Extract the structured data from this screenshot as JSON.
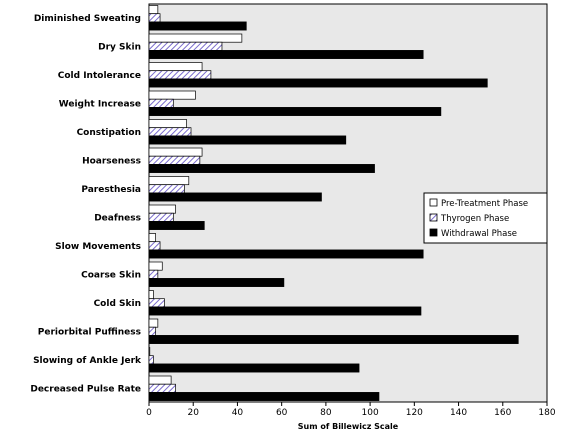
{
  "chart_data": {
    "type": "bar",
    "orientation": "horizontal",
    "title": "",
    "xlabel": "Sum of Billewicz Scale",
    "ylabel": "",
    "xlim": [
      0,
      180
    ],
    "xticks": [
      0,
      20,
      40,
      60,
      80,
      100,
      120,
      140,
      160,
      180
    ],
    "grid": false,
    "legend_position": "right",
    "categories": [
      "Diminished Sweating",
      "Dry Skin",
      "Cold Intolerance",
      "Weight Increase",
      "Constipation",
      "Hoarseness",
      "Paresthesia",
      "Deafness",
      "Slow Movements",
      "Coarse Skin",
      "Cold Skin",
      "Periorbital Puffiness",
      "Slowing of Ankle Jerk",
      "Decreased Pulse Rate"
    ],
    "series": [
      {
        "name": "Pre-Treatment Phase",
        "pattern": "white",
        "values": [
          4,
          42,
          24,
          21,
          17,
          24,
          18,
          12,
          3,
          6,
          2,
          4,
          0,
          10
        ]
      },
      {
        "name": "Thyrogen Phase",
        "pattern": "hatched-purple",
        "values": [
          5,
          33,
          28,
          11,
          19,
          23,
          16,
          11,
          5,
          4,
          7,
          3,
          2,
          12
        ]
      },
      {
        "name": "Withdrawal Phase",
        "pattern": "black",
        "values": [
          44,
          124,
          153,
          132,
          89,
          102,
          78,
          25,
          124,
          61,
          123,
          167,
          95,
          104
        ]
      }
    ],
    "colors": {
      "plot_background": "#e8e8e8",
      "hatch": "#7a6ccd",
      "bar_border": "#000000",
      "solid": "#000000"
    }
  }
}
